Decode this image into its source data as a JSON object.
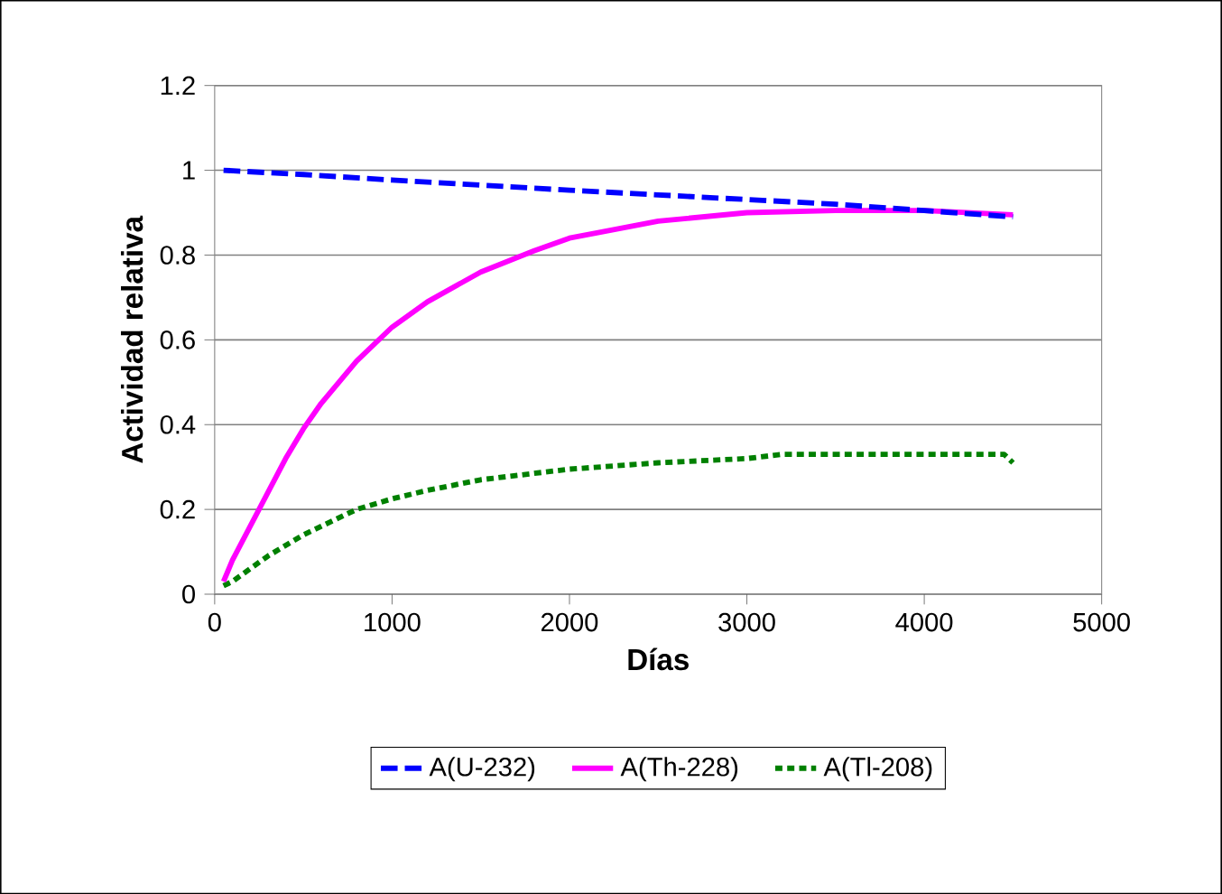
{
  "chart_data": {
    "type": "line",
    "xlabel": "Días",
    "ylabel": "Actividad relativa",
    "xlim": [
      0,
      5000
    ],
    "ylim": [
      0,
      1.2
    ],
    "xticks": [
      0,
      1000,
      2000,
      3000,
      4000,
      5000
    ],
    "yticks": [
      0,
      0.2,
      0.4,
      0.6,
      0.8,
      1,
      1.2
    ],
    "grid": "y",
    "legend": "bottom",
    "marker": "none",
    "series": [
      {
        "name": "A(U-232)",
        "color": "#0000ff",
        "line_style": "dashed",
        "x": [
          50,
          500,
          1000,
          1500,
          2000,
          2500,
          3000,
          3500,
          4000,
          4500
        ],
        "values": [
          1.0,
          0.99,
          0.977,
          0.965,
          0.953,
          0.942,
          0.931,
          0.92,
          0.905,
          0.89
        ]
      },
      {
        "name": "A(Th-228)",
        "color": "#ff00ff",
        "line_style": "solid",
        "x": [
          50,
          100,
          200,
          300,
          400,
          500,
          600,
          800,
          1000,
          1200,
          1500,
          1800,
          2000,
          2500,
          3000,
          3500,
          4000,
          4500
        ],
        "values": [
          0.03,
          0.08,
          0.16,
          0.24,
          0.32,
          0.39,
          0.45,
          0.55,
          0.63,
          0.69,
          0.76,
          0.81,
          0.84,
          0.88,
          0.9,
          0.905,
          0.905,
          0.895
        ]
      },
      {
        "name": "A(Tl-208)",
        "color": "#008000",
        "line_style": "dotted",
        "x": [
          50,
          100,
          200,
          300,
          400,
          500,
          600,
          800,
          1000,
          1200,
          1500,
          1800,
          2000,
          2500,
          3000,
          3200,
          3500,
          4000,
          4450,
          4500
        ],
        "values": [
          0.02,
          0.03,
          0.06,
          0.09,
          0.115,
          0.14,
          0.16,
          0.2,
          0.225,
          0.245,
          0.27,
          0.285,
          0.295,
          0.31,
          0.32,
          0.33,
          0.33,
          0.33,
          0.33,
          0.31
        ]
      }
    ]
  }
}
